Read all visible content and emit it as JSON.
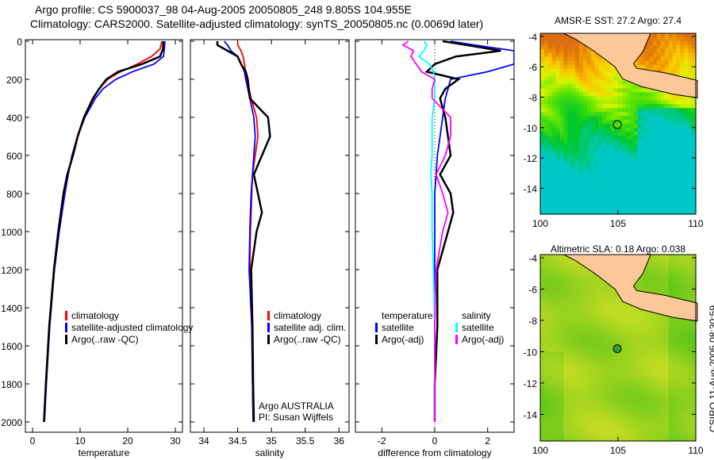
{
  "title_line1": "Argo profile: CS 5900037_98 04-Aug-2005 20050805_248 9.805S 104.955E",
  "title_line2": "Climatology: CARS2000. Satellite-adjusted climatology: synTS_20050805.nc (0.0069d later)",
  "side_label": "CSIRO 11-Aug-2005 08:30:59",
  "colors": {
    "climatology": "#ff0000",
    "satellite": "#0000ff",
    "argo": "#000000",
    "sal_satellite": "#00ffff",
    "sal_argo": "#ff00ff"
  },
  "chart_data": [
    {
      "type": "line",
      "xlabel": "temperature",
      "ylabel": "depth",
      "xlim": [
        -1.5,
        31.5
      ],
      "ylim": [
        2000,
        0
      ],
      "xticks": [
        "0",
        "10",
        "20",
        "30"
      ],
      "xtick_values": [
        0,
        10,
        20,
        30
      ],
      "yticks": [
        "0",
        "200",
        "400",
        "600",
        "800",
        "1000",
        "1200",
        "1400",
        "1600",
        "1800",
        "2000"
      ],
      "legend": [
        "climatology",
        "satellite-adjusted climatology",
        "Argo(..raw -QC)"
      ],
      "depth": [
        0,
        40,
        80,
        120,
        160,
        200,
        250,
        300,
        400,
        500,
        600,
        700,
        800,
        1000,
        1200,
        1500,
        1800,
        2000
      ],
      "series": [
        {
          "name": "climatology",
          "color": "#ff0000",
          "values": [
            27.2,
            26.8,
            25,
            22,
            18.5,
            15.8,
            14,
            12.8,
            10.8,
            9.4,
            8.3,
            7.5,
            6.8,
            5.6,
            4.6,
            3.6,
            2.9,
            2.5
          ]
        },
        {
          "name": "satellite-adjusted climatology",
          "color": "#0000ff",
          "values": [
            27.8,
            27.7,
            27.5,
            25.5,
            21,
            17.5,
            14.8,
            13.2,
            11,
            9.5,
            8.3,
            7.5,
            6.8,
            5.6,
            4.6,
            3.6,
            2.9,
            2.5
          ]
        },
        {
          "name": "Argo(..raw -QC)",
          "color": "#000000",
          "values": [
            27.5,
            27.4,
            26.8,
            23,
            18,
            15.5,
            14,
            12.7,
            10.8,
            9.5,
            8.5,
            7.3,
            6.5,
            5.4,
            4.5,
            3.5,
            2.8,
            2.4
          ]
        }
      ]
    },
    {
      "type": "line",
      "xlabel": "salinity",
      "xlim": [
        33.8,
        36.15
      ],
      "ylim": [
        2000,
        0
      ],
      "xticks": [
        "34",
        "34.5",
        "35",
        "35.5",
        "36"
      ],
      "xtick_values": [
        34,
        34.5,
        35,
        35.5,
        36
      ],
      "legend": [
        "climatology",
        "satellite adj. clim.",
        "Argo(..raw -QC)"
      ],
      "annotation": [
        "Argo AUSTRALIA",
        "PI: Susan Wijffels"
      ],
      "depth": [
        0,
        20,
        50,
        80,
        120,
        160,
        200,
        300,
        400,
        500,
        600,
        700,
        800,
        900,
        1000,
        1200,
        1500,
        1800,
        2000
      ],
      "series": [
        {
          "name": "climatology",
          "color": "#ff0000",
          "values": [
            34.5,
            34.5,
            34.55,
            34.58,
            34.6,
            34.62,
            34.64,
            34.7,
            34.78,
            34.8,
            34.76,
            34.72,
            34.71,
            34.7,
            34.69,
            34.68,
            34.71,
            34.72,
            34.73
          ]
        },
        {
          "name": "satellite adj. clim.",
          "color": "#0000ff",
          "values": [
            34.3,
            34.35,
            34.4,
            34.5,
            34.55,
            34.6,
            34.62,
            34.68,
            34.74,
            34.76,
            34.74,
            34.72,
            34.7,
            34.69,
            34.68,
            34.67,
            34.71,
            34.72,
            34.73
          ]
        },
        {
          "name": "Argo(..raw -QC)",
          "color": "#000000",
          "values": [
            34.2,
            34.2,
            34.35,
            34.5,
            34.55,
            34.62,
            34.65,
            34.68,
            34.95,
            34.98,
            34.86,
            34.74,
            34.8,
            34.86,
            34.78,
            34.7,
            34.72,
            34.73,
            34.74
          ]
        }
      ]
    },
    {
      "type": "line",
      "xlabel": "difference from climatology",
      "xlim": [
        -3,
        3
      ],
      "ylim": [
        2000,
        0
      ],
      "xticks": [
        "-2",
        "0",
        "2"
      ],
      "xtick_values": [
        -2,
        0,
        2
      ],
      "legend_temperature": {
        "heading": "temperature",
        "items": [
          "satellite",
          "Argo(-adj)"
        ]
      },
      "legend_salinity": {
        "heading": "salinity",
        "items": [
          "satellite",
          "Argo(-adj)"
        ]
      },
      "depth": [
        0,
        20,
        50,
        80,
        120,
        160,
        200,
        250,
        300,
        400,
        500,
        600,
        700,
        800,
        900,
        1000,
        1200,
        1500,
        1800,
        2000
      ],
      "series": [
        {
          "name": "temperature satellite",
          "color": "#0000ff",
          "values": [
            0.6,
            1.5,
            3,
            3,
            3,
            2,
            0.6,
            0.5,
            0.4,
            0.3,
            0.2,
            0.1,
            0.05,
            0,
            0,
            0,
            0,
            0,
            0,
            0
          ]
        },
        {
          "name": "temperature Argo(-adj)",
          "color": "#000000",
          "values": [
            0.3,
            1.2,
            2.5,
            0.8,
            0,
            -0.3,
            0.9,
            0.4,
            0.2,
            0.4,
            0.5,
            0.6,
            0.2,
            0.6,
            0.7,
            0.5,
            0.1,
            0.1,
            0,
            0
          ]
        },
        {
          "name": "salinity satellite",
          "color": "#00ffff",
          "values": [
            -0.4,
            -0.3,
            -0.4,
            -0.6,
            -0.2,
            -0.05,
            0,
            0,
            0,
            -0.1,
            -0.1,
            -0.1,
            -0.15,
            -0.1,
            -0.1,
            -0.1,
            -0.05,
            0,
            0,
            0
          ]
        },
        {
          "name": "salinity Argo(-adj)",
          "color": "#ff00ff",
          "values": [
            -1,
            -1.2,
            -0.8,
            -0.9,
            -0.7,
            -0.5,
            0,
            -0.1,
            -0.1,
            0.6,
            0.6,
            0.4,
            0.05,
            0.3,
            0.5,
            0.3,
            0.05,
            0,
            0,
            0
          ]
        }
      ]
    },
    {
      "type": "heatmap",
      "title": "AMSR-E SST: 27.2 Argo: 27.4",
      "xticks": [
        "100",
        "105",
        "110"
      ],
      "yticks": [
        "-4",
        "-6",
        "-8",
        "-10",
        "-12",
        "-14"
      ],
      "xlim": [
        100,
        110
      ],
      "ylim": [
        -15.7,
        -3.8
      ],
      "marker": {
        "lon": 104.955,
        "lat": -9.805
      }
    },
    {
      "type": "heatmap",
      "title": "Altimetric SLA: 0.18 Argo: 0.038",
      "xticks": [
        "100",
        "105",
        "110"
      ],
      "yticks": [
        "-4",
        "-6",
        "-8",
        "-10",
        "-12",
        "-14"
      ],
      "xlim": [
        100,
        110
      ],
      "ylim": [
        -15.7,
        -3.8
      ],
      "marker": {
        "lon": 104.955,
        "lat": -9.805
      }
    }
  ]
}
